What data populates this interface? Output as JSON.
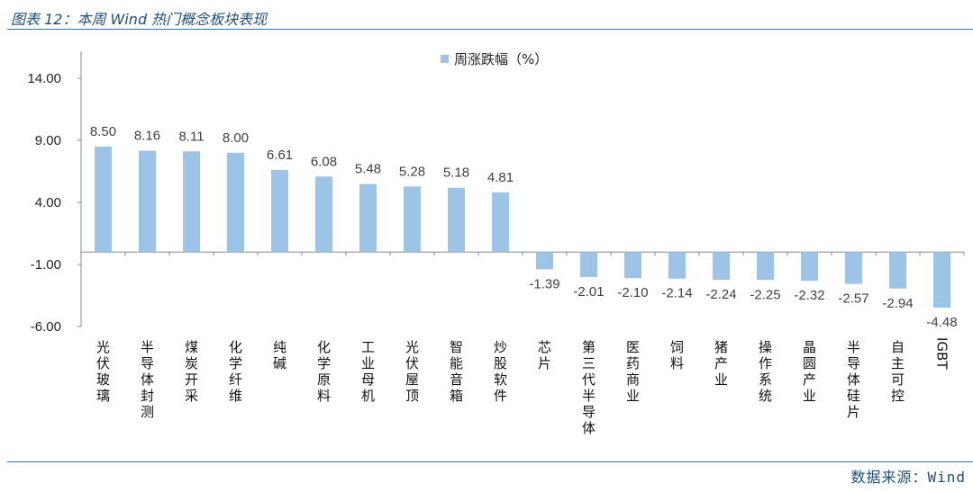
{
  "header": {
    "title": "图表 12：本周 Wind 热门概念板块表现"
  },
  "footer": {
    "source": "数据来源：Wind"
  },
  "colors": {
    "bar": "#9dc3e6",
    "title": "#1f4e79",
    "rule": "#2e75b6"
  },
  "chart_data": {
    "type": "bar",
    "title": "",
    "xlabel": "",
    "ylabel": "",
    "legend": {
      "position": "top-center",
      "entries": [
        "周涨跌幅（%）"
      ]
    },
    "grid": false,
    "ylim": [
      -6.0,
      14.0
    ],
    "yticks": [
      "14.00",
      "9.00",
      "4.00",
      "-1.00",
      "-6.00"
    ],
    "ytick_values": [
      14,
      9,
      4,
      -1,
      -6
    ],
    "categories": [
      "光伏玻璃",
      "半导体封测",
      "煤炭开采",
      "化学纤维",
      "纯碱",
      "化学原料",
      "工业母机",
      "光伏屋顶",
      "智能音箱",
      "炒股软件",
      "芯片",
      "第三代半导体",
      "医药商业",
      "饲料",
      "猪产业",
      "操作系统",
      "晶圆产业",
      "半导体硅片",
      "自主可控",
      "IGBT"
    ],
    "series": [
      {
        "name": "周涨跌幅（%）",
        "values": [
          8.5,
          8.16,
          8.11,
          8.0,
          6.61,
          6.08,
          5.48,
          5.28,
          5.18,
          4.81,
          -1.39,
          -2.01,
          -2.1,
          -2.14,
          -2.24,
          -2.25,
          -2.32,
          -2.57,
          -2.94,
          -4.48
        ],
        "labels": [
          "8.50",
          "8.16",
          "8.11",
          "8.00",
          "6.61",
          "6.08",
          "5.48",
          "5.28",
          "5.18",
          "4.81",
          "-1.39",
          "-2.01",
          "-2.10",
          "-2.14",
          "-2.24",
          "-2.25",
          "-2.32",
          "-2.57",
          "-2.94",
          "-4.48"
        ]
      }
    ]
  }
}
